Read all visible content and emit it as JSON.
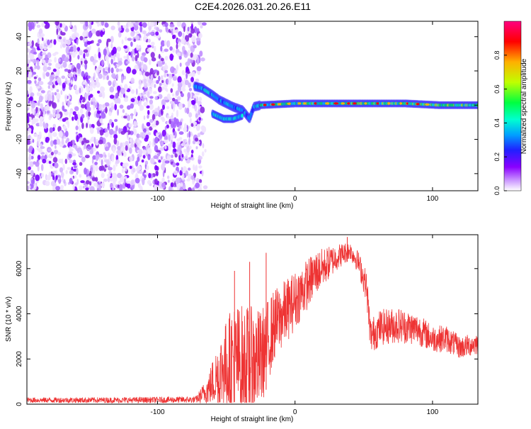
{
  "title": "C2E4.2026.031.20.26.E11",
  "chart_data": [
    {
      "type": "heatmap",
      "title": "C2E4.2026.031.20.26.E11",
      "xlabel": "Height of straight line (km)",
      "ylabel": "Frequency (Hz)",
      "xlim": [
        -195,
        133
      ],
      "ylim": [
        -50,
        49
      ],
      "x_ticks": [
        -100,
        0,
        100
      ],
      "x_tick_labels": [
        "-100",
        "0",
        "100"
      ],
      "y_ticks": [
        -40,
        -20,
        0,
        20,
        40
      ],
      "y_tick_labels": [
        "-40",
        "-20",
        "0",
        "20",
        "40"
      ],
      "noise_region": {
        "x_start": -195,
        "x_end": -68,
        "freq_min": -50,
        "freq_max": 49
      },
      "signal_track": [
        {
          "x": -73,
          "freq": 11
        },
        {
          "x": -68,
          "freq": 10
        },
        {
          "x": -60,
          "freq": 6
        },
        {
          "x": -55,
          "freq": 3
        },
        {
          "x": -45,
          "freq": -1
        },
        {
          "x": -38,
          "freq": -3
        },
        {
          "x": -33,
          "freq": -8
        },
        {
          "x": -30,
          "freq": -1
        },
        {
          "x": -25,
          "freq": 0
        },
        {
          "x": 0,
          "freq": 1
        },
        {
          "x": 40,
          "freq": 1
        },
        {
          "x": 80,
          "freq": 1
        },
        {
          "x": 105,
          "freq": 0
        },
        {
          "x": 133,
          "freq": 0
        }
      ],
      "secondary_track": [
        {
          "x": -60,
          "freq": -5
        },
        {
          "x": -52,
          "freq": -8
        },
        {
          "x": -45,
          "freq": -8
        },
        {
          "x": -38,
          "freq": -6
        }
      ],
      "colorbar": {
        "label": "Normalized spectral amplitude",
        "range": [
          0,
          1
        ],
        "ticks": [
          0.0,
          0.2,
          0.4,
          0.6,
          0.8
        ],
        "tick_labels": [
          "0.0",
          "0.2",
          "0.4",
          "0.6",
          "0.8"
        ],
        "colors": [
          "#ffffff",
          "#cc99ff",
          "#8a00ff",
          "#2020ff",
          "#00a0ff",
          "#00ffd0",
          "#00ff40",
          "#c0ff00",
          "#ffb000",
          "#ff0000",
          "#ff0080"
        ]
      }
    },
    {
      "type": "line",
      "xlabel": "Height of straight line (km)",
      "ylabel": "SNR (10 * v/v)",
      "xlim": [
        -195,
        133
      ],
      "ylim": [
        0,
        7500
      ],
      "x_ticks": [
        -100,
        0,
        100
      ],
      "x_tick_labels": [
        "-100",
        "0",
        "100"
      ],
      "y_ticks": [
        0,
        2000,
        4000,
        6000
      ],
      "y_tick_labels": [
        "0",
        "2000",
        "4000",
        "6000"
      ],
      "series": [
        {
          "name": "SNR",
          "color": "#ee3333",
          "envelope": [
            {
              "x": -195,
              "base": 180,
              "amp": 120
            },
            {
              "x": -120,
              "base": 180,
              "amp": 130
            },
            {
              "x": -72,
              "base": 200,
              "amp": 150
            },
            {
              "x": -64,
              "base": 600,
              "amp": 600
            },
            {
              "x": -55,
              "base": 1400,
              "amp": 1600
            },
            {
              "x": -45,
              "base": 2000,
              "amp": 2500
            },
            {
              "x": -35,
              "base": 1800,
              "amp": 2600
            },
            {
              "x": -25,
              "base": 2000,
              "amp": 2200
            },
            {
              "x": -15,
              "base": 3500,
              "amp": 1600
            },
            {
              "x": 0,
              "base": 4600,
              "amp": 1300
            },
            {
              "x": 15,
              "base": 5800,
              "amp": 1000
            },
            {
              "x": 30,
              "base": 6500,
              "amp": 600
            },
            {
              "x": 40,
              "base": 6800,
              "amp": 400
            },
            {
              "x": 46,
              "base": 6300,
              "amp": 500
            },
            {
              "x": 52,
              "base": 5200,
              "amp": 700
            },
            {
              "x": 55,
              "base": 3000,
              "amp": 800
            },
            {
              "x": 62,
              "base": 3400,
              "amp": 800
            },
            {
              "x": 75,
              "base": 3500,
              "amp": 800
            },
            {
              "x": 90,
              "base": 3300,
              "amp": 700
            },
            {
              "x": 100,
              "base": 2900,
              "amp": 600
            },
            {
              "x": 110,
              "base": 2900,
              "amp": 600
            },
            {
              "x": 120,
              "base": 2500,
              "amp": 500
            },
            {
              "x": 133,
              "base": 2700,
              "amp": 500
            }
          ]
        }
      ],
      "spikes": [
        {
          "x": -44,
          "value": 5900
        },
        {
          "x": -33,
          "value": 6300
        },
        {
          "x": -21,
          "value": 6700
        },
        {
          "x": 38,
          "value": 7400
        }
      ]
    }
  ]
}
